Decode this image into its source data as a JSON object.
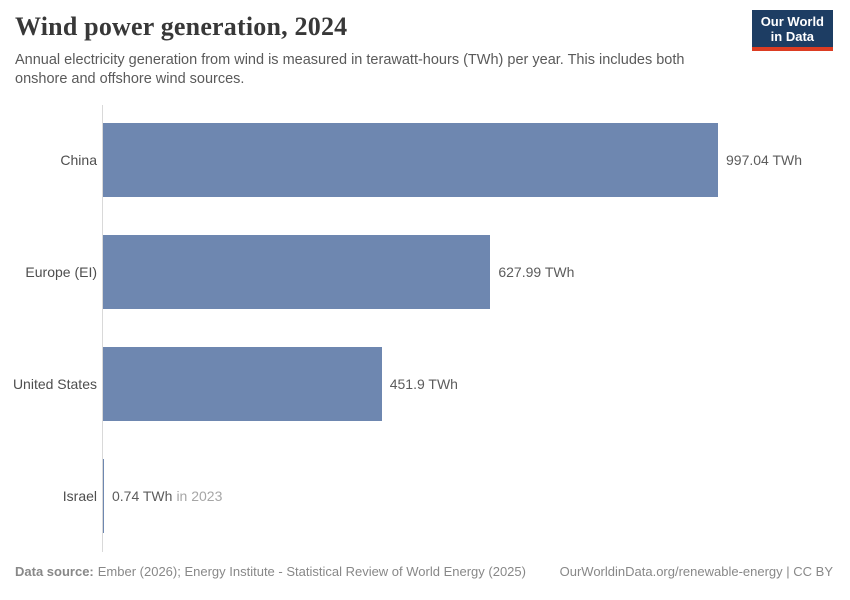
{
  "header": {
    "title": "Wind power generation, 2024",
    "subtitle_line1": "Annual electricity generation from wind is measured in terawatt-hours (TWh) per year. This includes both",
    "subtitle_line2": "onshore and offshore wind sources.",
    "logo": {
      "line1": "Our World",
      "line2": "in Data"
    }
  },
  "chart_data": {
    "type": "bar",
    "orientation": "horizontal",
    "title": "Wind power generation, 2024",
    "unit": "TWh",
    "xlim": [
      0,
      997.04
    ],
    "grid": false,
    "legend": false,
    "categories": [
      "China",
      "Europe (EI)",
      "United States",
      "Israel"
    ],
    "values": [
      997.04,
      627.99,
      451.9,
      0.74
    ],
    "rows": [
      {
        "label": "China",
        "value": 997.04,
        "value_label": "997.04 TWh",
        "note": ""
      },
      {
        "label": "Europe (EI)",
        "value": 627.99,
        "value_label": "627.99 TWh",
        "note": ""
      },
      {
        "label": "United States",
        "value": 451.9,
        "value_label": "451.9 TWh",
        "note": ""
      },
      {
        "label": "Israel",
        "value": 0.74,
        "value_label": "0.74 TWh",
        "note": "in 2023"
      }
    ],
    "bar_color": "#6e87b0"
  },
  "footer": {
    "source_label": "Data source:",
    "source_text": "Ember (2026); Energy Institute - Statistical Review of World Energy (2025)",
    "link_text": "OurWorldinData.org/renewable-energy | CC BY"
  }
}
